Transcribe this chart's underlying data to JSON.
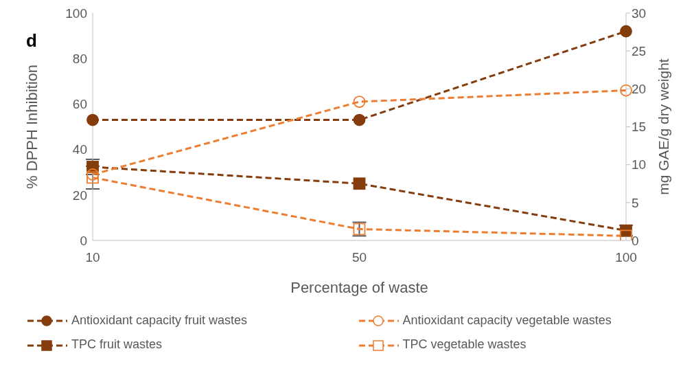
{
  "chart_data": {
    "type": "line",
    "title": "d",
    "xlabel": "Percentage of waste",
    "ylabel": "% DPPH Inhibition",
    "y2label": "mg GAE/g dry weight",
    "categories": [
      "10",
      "50",
      "100"
    ],
    "series": [
      {
        "name": "Antioxidant capacity fruit wastes",
        "color": "#843c0c",
        "values": [
          53,
          53,
          92
        ],
        "marker": "circle"
      },
      {
        "name": "Antioxidant capacity vegetable wastes",
        "color": "#ed7d31",
        "values": [
          29,
          61,
          66
        ],
        "marker": "circle"
      },
      {
        "name": "TPC fruit wastes",
        "color": "#843c0c",
        "values": [
          9.7,
          7.5,
          1.3
        ],
        "marker": "square",
        "axis": "y2",
        "errors": [
          1,
          null,
          0.7
        ]
      },
      {
        "name": "TPC vegetable wastes",
        "color": "#ed7d31",
        "values": [
          8.3,
          1.5,
          0.6
        ],
        "marker": "square",
        "axis": "y2",
        "errors": [
          1.5,
          0.9,
          null
        ]
      }
    ],
    "ylim": [
      0,
      100
    ],
    "yticks": [
      0,
      20,
      40,
      60,
      80,
      100
    ],
    "y2lim": [
      0,
      30
    ],
    "y2ticks": [
      0,
      5,
      10,
      15,
      20,
      25,
      30
    ],
    "line_style": "dashed",
    "grid": false,
    "legend": "bottom"
  }
}
